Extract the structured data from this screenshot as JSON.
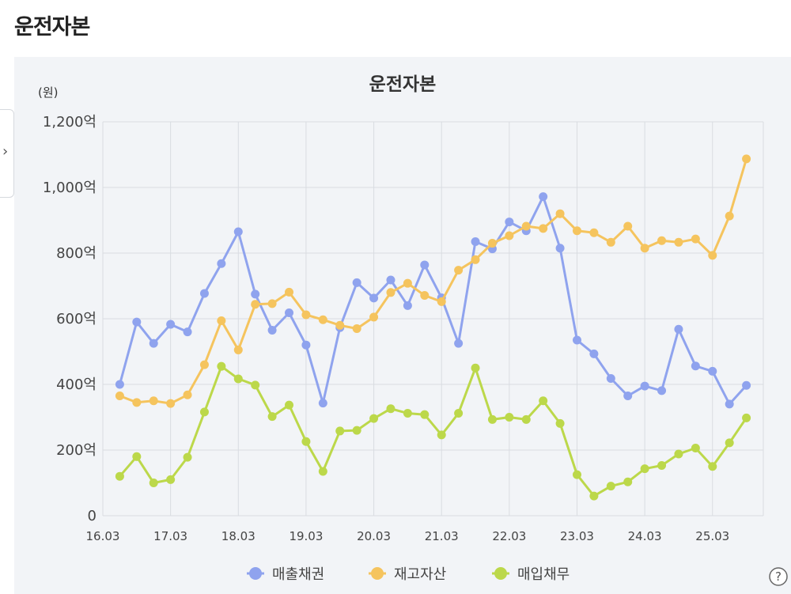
{
  "page": {
    "title": "운전자본"
  },
  "icons": {
    "side_toggle": "chevron-right-icon",
    "help": "question-circle-icon"
  },
  "help": {
    "label": "?"
  },
  "chart_data": {
    "type": "line",
    "title": "운전자본",
    "unit": "(원)",
    "ylim": [
      0,
      1200
    ],
    "yticks": [
      {
        "value": 0,
        "label": "0"
      },
      {
        "value": 200,
        "label": "200억"
      },
      {
        "value": 400,
        "label": "400억"
      },
      {
        "value": 600,
        "label": "600억"
      },
      {
        "value": 800,
        "label": "800억"
      },
      {
        "value": 1000,
        "label": "1,000억"
      },
      {
        "value": 1200,
        "label": "1,200억"
      }
    ],
    "xticks": [
      "16.03",
      "17.03",
      "18.03",
      "19.03",
      "20.03",
      "21.03",
      "22.03",
      "23.03",
      "24.03",
      "25.03"
    ],
    "x_index_range": [
      0,
      39
    ],
    "grid": true,
    "legend_position": "bottom",
    "series": [
      {
        "name": "매출채권",
        "color": "#8fa3ee",
        "values": [
          400,
          590,
          525,
          583,
          560,
          677,
          768,
          865,
          675,
          565,
          618,
          520,
          343,
          573,
          710,
          663,
          718,
          640,
          764,
          664,
          525,
          835,
          813,
          895,
          868,
          972,
          815,
          535,
          493,
          418,
          365,
          395,
          381,
          568,
          456,
          440,
          340,
          397
        ]
      },
      {
        "name": "재고자산",
        "color": "#f5c45e",
        "values": [
          365,
          345,
          350,
          342,
          368,
          460,
          594,
          505,
          644,
          646,
          681,
          612,
          597,
          580,
          570,
          605,
          680,
          708,
          671,
          652,
          748,
          780,
          830,
          853,
          882,
          875,
          920,
          868,
          862,
          833,
          882,
          815,
          838,
          833,
          843,
          793,
          913,
          1087
        ]
      },
      {
        "name": "매입채무",
        "color": "#bcd84a",
        "values": [
          120,
          180,
          100,
          110,
          178,
          316,
          455,
          417,
          398,
          302,
          337,
          226,
          135,
          258,
          260,
          296,
          326,
          312,
          308,
          246,
          312,
          450,
          293,
          300,
          293,
          350,
          281,
          125,
          60,
          90,
          103,
          143,
          153,
          188,
          206,
          150,
          222,
          298
        ]
      }
    ]
  }
}
